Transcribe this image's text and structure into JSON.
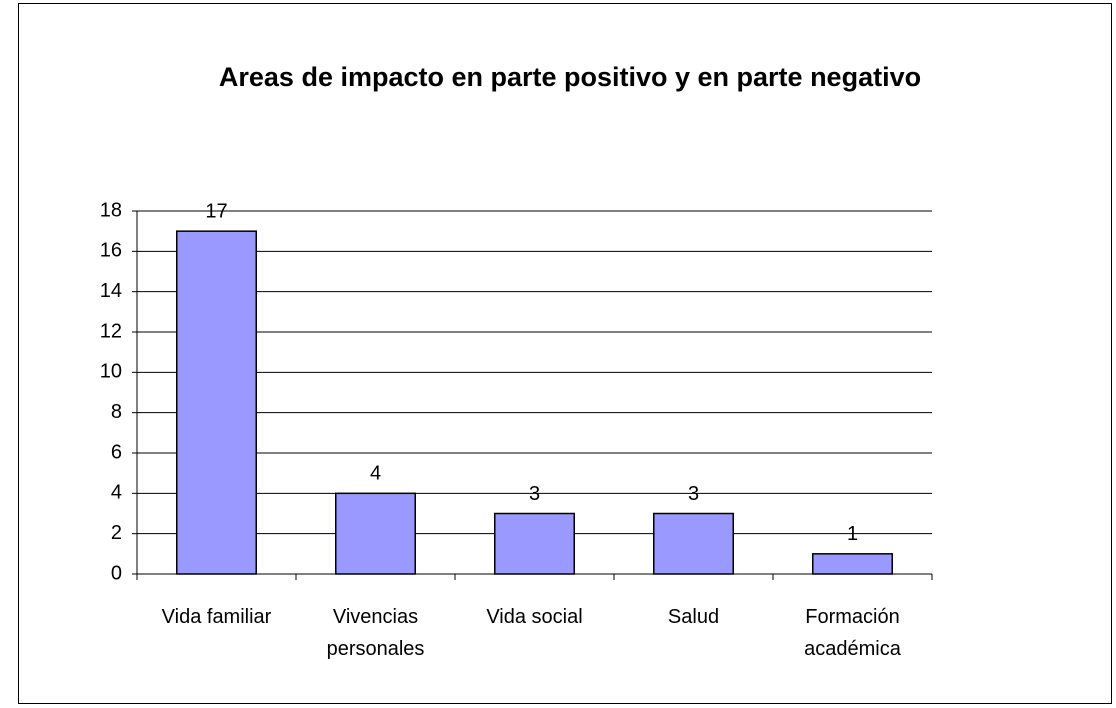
{
  "chart_data": {
    "type": "bar",
    "title": "Areas de impacto en parte positivo y en parte negativo",
    "categories": [
      "Vida familiar",
      "Vivencias personales",
      "Vida social",
      "Salud",
      "Formación académica"
    ],
    "values": [
      17,
      4,
      3,
      3,
      1
    ],
    "color": "#9999ff",
    "ylim": [
      0,
      18
    ],
    "yticks": [
      0,
      2,
      4,
      6,
      8,
      10,
      12,
      14,
      16,
      18
    ],
    "grid": true
  }
}
